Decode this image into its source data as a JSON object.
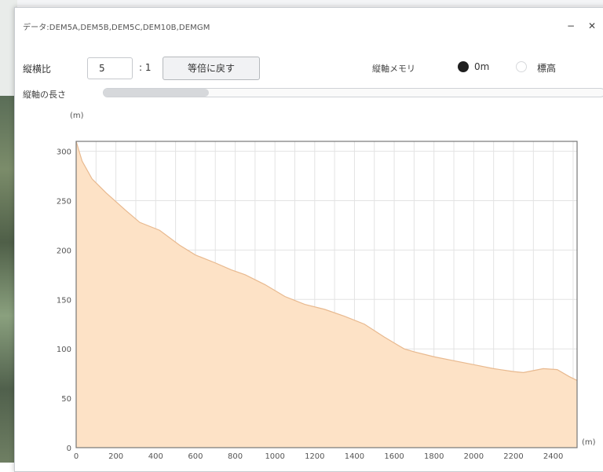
{
  "window": {
    "title": "データ:DEM5A,DEM5B,DEM5C,DEM10B,DEMGM",
    "minimize_glyph": "−",
    "close_glyph": "✕"
  },
  "toolbar": {
    "vertical_exaggeration_label": "縦横比",
    "vertical_exaggeration_value": "5",
    "ratio_suffix": ": 1",
    "reset_button": "等倍に戻す",
    "axis_label": "縦軸メモリ",
    "radio_selected_label": "0m",
    "radio_other_label": "標高",
    "radio_selected_color": "#1f1f1f"
  },
  "depth": {
    "label": "縦軸の長さ",
    "level_fraction": 0.21
  },
  "chart_data": {
    "type": "area",
    "y_unit": "(m)",
    "x_unit": "(m)",
    "xlim": [
      0,
      2520
    ],
    "ylim": [
      0,
      310
    ],
    "x_ticks": [
      0,
      200,
      400,
      600,
      800,
      1000,
      1200,
      1400,
      1600,
      1800,
      2000,
      2200,
      2400
    ],
    "y_ticks": [
      0,
      50,
      100,
      150,
      200,
      250,
      300
    ],
    "grid": true,
    "fill_color": "#fde2c6",
    "line_color": "#e8b98f",
    "x": [
      0,
      30,
      80,
      150,
      250,
      320,
      420,
      520,
      600,
      700,
      780,
      850,
      950,
      1050,
      1150,
      1250,
      1350,
      1450,
      1550,
      1650,
      1700,
      1800,
      1900,
      2000,
      2100,
      2200,
      2250,
      2300,
      2350,
      2420,
      2480,
      2520
    ],
    "y": [
      310,
      290,
      272,
      258,
      240,
      228,
      220,
      205,
      195,
      187,
      180,
      175,
      165,
      153,
      145,
      140,
      133,
      125,
      112,
      100,
      97,
      92,
      88,
      84,
      80,
      77,
      76,
      78,
      80,
      79,
      72,
      68
    ]
  }
}
